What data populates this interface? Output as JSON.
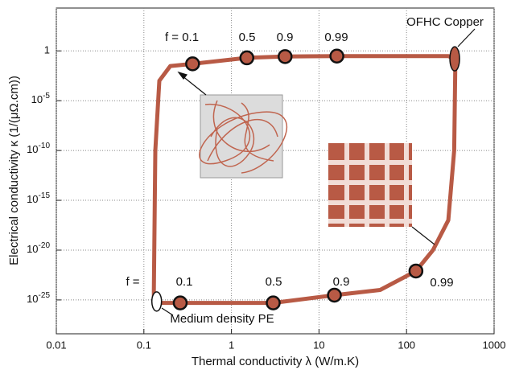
{
  "chart_data": {
    "type": "scatter",
    "x_label": "Thermal conductivity λ  (W/m.K)",
    "y_label": "Electrical conductivity  κ  (1/(μΩ.cm))",
    "xscale": "log",
    "yscale": "log",
    "grid": true,
    "color": "#b85a45",
    "xlim": [
      0.01,
      1000
    ],
    "ylim": [
      4e-29,
      20000
    ],
    "xticks": [
      0.01,
      0.1,
      1,
      10,
      100,
      1000
    ],
    "yticks": [
      {
        "value": 1e-25,
        "label": "10",
        "superscript": "-25"
      },
      {
        "value": 1e-20,
        "label": "10",
        "superscript": "-20"
      },
      {
        "value": 1e-15,
        "label": "10",
        "superscript": "-15"
      },
      {
        "value": 1e-10,
        "label": "10",
        "superscript": "-10"
      },
      {
        "value": 1e-05,
        "label": "10",
        "superscript": "-5"
      },
      1
    ],
    "curve": {
      "x": [
        0.13,
        0.13,
        0.135,
        0.15,
        0.2,
        0.36,
        1.5,
        4,
        16,
        300,
        350,
        360,
        350,
        300,
        200,
        128,
        50,
        15,
        3,
        0.26,
        0.13
      ],
      "y": [
        5e-26,
        1e-24,
        1e-10,
        0.001,
        0.03,
        0.05,
        0.2,
        0.27,
        0.3,
        0.3,
        0.16,
        0.01,
        1e-10,
        1e-17,
        1e-20,
        8e-23,
        1e-24,
        3e-25,
        5e-26,
        5e-26,
        5e-26
      ]
    },
    "series": [
      {
        "name": "upper",
        "x": [
          0.36,
          1.5,
          4.1,
          16
        ],
        "y": [
          0.05,
          0.2,
          0.27,
          0.3
        ],
        "labels": [
          "f = 0.1",
          "0.5",
          "0.9",
          "0.99"
        ]
      },
      {
        "name": "lower",
        "x": [
          0.26,
          3.0,
          15,
          128
        ],
        "y": [
          5e-26,
          5e-26,
          3e-25,
          8e-23
        ],
        "labels": [
          "0.1",
          "0.5",
          "0.9",
          "0.99"
        ]
      }
    ],
    "endpoints": [
      {
        "label": "OFHC Copper",
        "x": 355,
        "y": 0.16
      },
      {
        "label": "Medium density PE",
        "x": 0.14,
        "y": 7e-26
      }
    ],
    "annotations": [
      "f ="
    ]
  }
}
